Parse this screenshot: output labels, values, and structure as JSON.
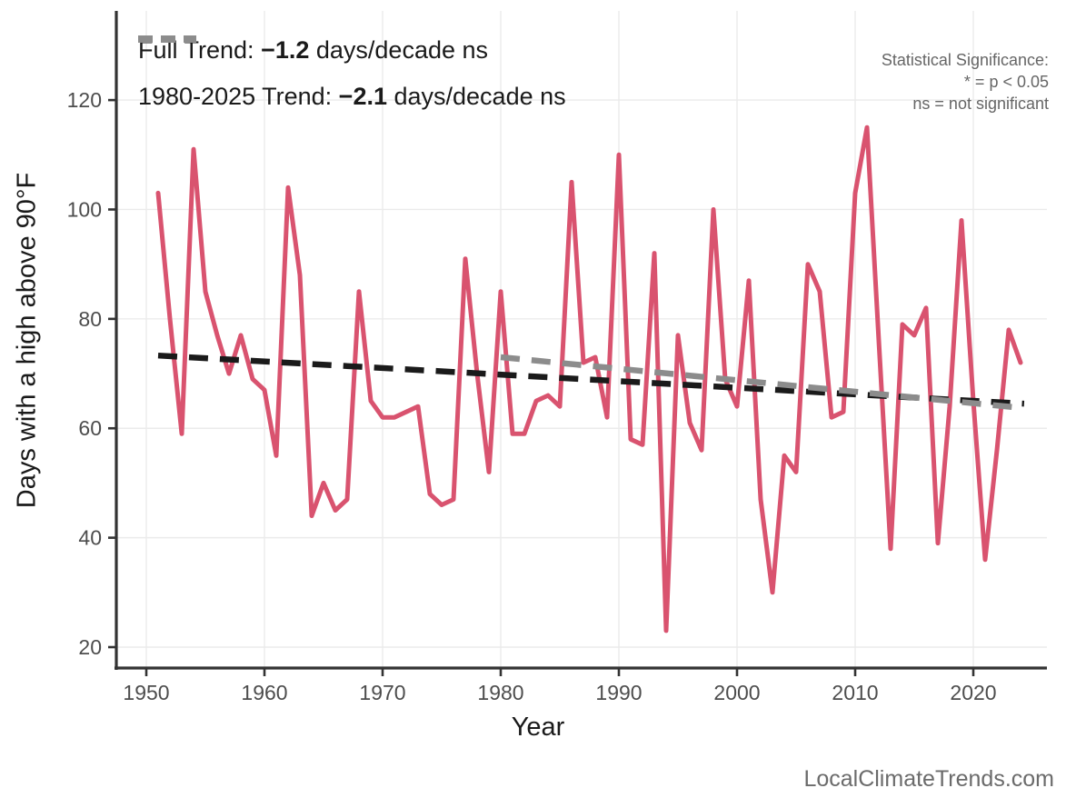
{
  "chart_data": {
    "type": "line",
    "title": "",
    "xlabel": "Year",
    "ylabel": "Days with a high above 90°F",
    "x_ticks": [
      1950,
      1960,
      1970,
      1980,
      1990,
      2000,
      2010,
      2020
    ],
    "y_ticks": [
      20,
      40,
      60,
      80,
      100,
      120
    ],
    "xlim": [
      1947,
      2026
    ],
    "ylim": [
      16,
      136
    ],
    "grid": "on",
    "legend_position": "top-left-inside",
    "series": [
      {
        "name": "days-above-90F-annual",
        "color": "#D9536F",
        "x": [
          1951,
          1952,
          1953,
          1954,
          1955,
          1956,
          1957,
          1958,
          1959,
          1960,
          1961,
          1962,
          1963,
          1964,
          1965,
          1966,
          1967,
          1968,
          1969,
          1970,
          1971,
          1972,
          1973,
          1974,
          1975,
          1976,
          1977,
          1978,
          1979,
          1980,
          1981,
          1982,
          1983,
          1984,
          1985,
          1986,
          1987,
          1988,
          1989,
          1990,
          1991,
          1992,
          1993,
          1994,
          1995,
          1996,
          1997,
          1998,
          1999,
          2000,
          2001,
          2002,
          2003,
          2004,
          2005,
          2006,
          2007,
          2008,
          2009,
          2010,
          2011,
          2012,
          2013,
          2014,
          2015,
          2016,
          2017,
          2018,
          2019,
          2020,
          2021,
          2022,
          2023,
          2024
        ],
        "values": [
          103,
          80,
          59,
          111,
          85,
          77,
          70,
          77,
          69,
          67,
          55,
          104,
          88,
          44,
          50,
          45,
          47,
          85,
          65,
          62,
          62,
          63,
          64,
          48,
          46,
          47,
          91,
          70,
          52,
          85,
          59,
          59,
          65,
          66,
          64,
          105,
          72,
          73,
          62,
          110,
          58,
          57,
          92,
          23,
          77,
          61,
          56,
          100,
          69,
          64,
          87,
          47,
          30,
          55,
          52,
          90,
          85,
          62,
          63,
          103,
          115,
          76,
          38,
          79,
          77,
          82,
          39,
          64,
          98,
          65,
          36,
          56,
          78,
          72
        ]
      },
      {
        "name": "full-trend",
        "style": "dashed",
        "color": "#1A1A1A",
        "slope_days_per_decade": -1.2,
        "x1": 1951,
        "y1": 73.3,
        "x2": 2024.3,
        "y2": 64.5
      },
      {
        "name": "trend-1980-2025",
        "style": "dashed",
        "color": "#8C8C8C",
        "slope_days_per_decade": -2.1,
        "x1": 1980,
        "y1": 73.0,
        "x2": 2024.2,
        "y2": 63.7
      }
    ],
    "legend": [
      {
        "prefix": "Full Trend: ",
        "value": "−1.2",
        "suffix": " days/decade ns",
        "color": "#1A1A1A"
      },
      {
        "prefix": "1980-2025 Trend: ",
        "value": "−2.1",
        "suffix": " days/decade ns",
        "color": "#8C8C8C"
      }
    ],
    "annotation": {
      "lines": [
        "Statistical Significance:",
        "* = p < 0.05",
        "ns = not significant"
      ]
    },
    "watermark": "LocalClimateTrends.com",
    "colors": {
      "series_line": "#D9536F",
      "full_trend": "#1A1A1A",
      "recent_trend": "#8C8C8C",
      "gridline": "#EBEBEB",
      "axis": "#333333",
      "tick_label": "#4D4D4D",
      "background": "#FFFFFF"
    }
  }
}
